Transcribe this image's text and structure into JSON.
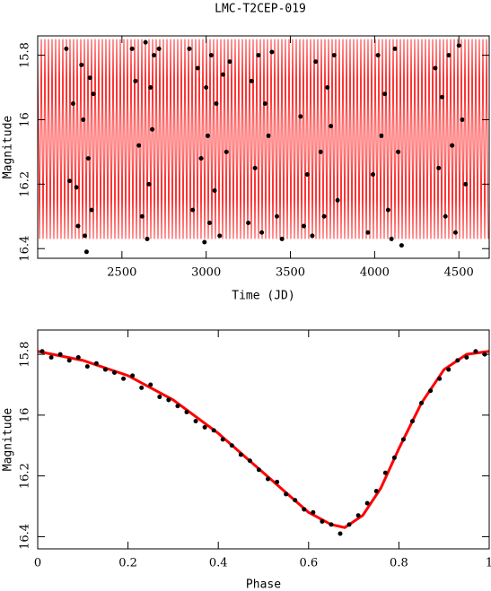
{
  "chart_data": [
    {
      "type": "scatter",
      "title": "LMC-T2CEP-019",
      "x_label": "Time (JD)",
      "y_label": "Magnitude",
      "xlim": [
        2000,
        4680
      ],
      "ylim": [
        15.74,
        16.43
      ],
      "y_inverted": true,
      "xticks": [
        2500,
        3000,
        3500,
        4000,
        4500
      ],
      "yticks": [
        15.8,
        16,
        16.2,
        16.4
      ],
      "model_band": [
        15.75,
        16.37
      ],
      "model_color": "#ff0000",
      "point_color": "#000000",
      "x": [
        2170,
        2190,
        2210,
        2230,
        2240,
        2260,
        2270,
        2280,
        2290,
        2300,
        2310,
        2320,
        2330,
        2560,
        2580,
        2600,
        2620,
        2640,
        2650,
        2660,
        2670,
        2680,
        2690,
        2720,
        2900,
        2920,
        2950,
        2970,
        2990,
        3000,
        3010,
        3020,
        3030,
        3050,
        3060,
        3080,
        3100,
        3120,
        3140,
        3250,
        3270,
        3290,
        3310,
        3330,
        3350,
        3370,
        3390,
        3420,
        3450,
        3560,
        3580,
        3600,
        3630,
        3650,
        3680,
        3700,
        3720,
        3740,
        3760,
        3780,
        3960,
        3990,
        4020,
        4040,
        4060,
        4080,
        4100,
        4120,
        4140,
        4160,
        4360,
        4380,
        4400,
        4420,
        4440,
        4460,
        4480,
        4500,
        4520,
        4540
      ],
      "values": [
        15.78,
        16.19,
        15.95,
        16.21,
        16.33,
        15.83,
        16.0,
        16.36,
        16.41,
        16.12,
        15.87,
        16.28,
        15.92,
        15.78,
        15.88,
        16.08,
        16.3,
        15.76,
        16.37,
        16.2,
        15.9,
        16.03,
        15.8,
        15.78,
        15.78,
        16.28,
        15.84,
        16.12,
        16.38,
        15.9,
        16.05,
        16.32,
        15.8,
        16.22,
        15.95,
        16.36,
        15.86,
        16.1,
        15.82,
        16.32,
        15.88,
        16.15,
        15.8,
        16.35,
        15.95,
        16.05,
        15.79,
        16.3,
        16.37,
        15.99,
        16.33,
        16.17,
        16.36,
        15.82,
        16.1,
        16.3,
        15.9,
        16.02,
        15.8,
        16.25,
        16.35,
        16.17,
        15.8,
        16.05,
        15.92,
        16.28,
        16.37,
        15.78,
        16.1,
        16.39,
        15.84,
        16.15,
        15.93,
        16.3,
        15.8,
        16.08,
        16.35,
        15.77,
        16.0,
        16.2
      ]
    },
    {
      "type": "scatter",
      "x_label": "Phase",
      "y_label": "Magnitude",
      "xlim": [
        0,
        1
      ],
      "ylim": [
        15.72,
        16.44
      ],
      "y_inverted": true,
      "xticks": [
        0,
        0.2,
        0.4,
        0.6,
        0.8,
        1
      ],
      "yticks": [
        15.8,
        16,
        16.2,
        16.4
      ],
      "model_color": "#ff0000",
      "point_color": "#000000",
      "model_x": [
        0,
        0.1,
        0.2,
        0.3,
        0.4,
        0.5,
        0.6,
        0.65,
        0.68,
        0.72,
        0.76,
        0.8,
        0.85,
        0.9,
        0.95,
        1
      ],
      "model_values": [
        15.79,
        15.82,
        15.87,
        15.95,
        16.06,
        16.19,
        16.32,
        16.36,
        16.37,
        16.33,
        16.24,
        16.11,
        15.96,
        15.85,
        15.8,
        15.79
      ],
      "x": [
        0.01,
        0.03,
        0.05,
        0.07,
        0.09,
        0.11,
        0.13,
        0.15,
        0.17,
        0.19,
        0.21,
        0.23,
        0.25,
        0.27,
        0.29,
        0.31,
        0.33,
        0.35,
        0.37,
        0.39,
        0.41,
        0.43,
        0.45,
        0.47,
        0.49,
        0.51,
        0.53,
        0.55,
        0.57,
        0.59,
        0.61,
        0.63,
        0.65,
        0.67,
        0.69,
        0.71,
        0.73,
        0.75,
        0.77,
        0.79,
        0.81,
        0.83,
        0.85,
        0.87,
        0.89,
        0.91,
        0.93,
        0.95,
        0.97,
        0.99
      ],
      "values": [
        15.79,
        15.81,
        15.8,
        15.82,
        15.81,
        15.84,
        15.83,
        15.85,
        15.86,
        15.88,
        15.87,
        15.91,
        15.9,
        15.94,
        15.95,
        15.97,
        15.99,
        16.02,
        16.04,
        16.05,
        16.08,
        16.1,
        16.13,
        16.15,
        16.18,
        16.21,
        16.22,
        16.26,
        16.28,
        16.31,
        16.32,
        16.35,
        16.36,
        16.39,
        16.36,
        16.33,
        16.29,
        16.25,
        16.19,
        16.14,
        16.08,
        16.02,
        15.96,
        15.92,
        15.88,
        15.85,
        15.82,
        15.81,
        15.79,
        15.8
      ]
    }
  ]
}
